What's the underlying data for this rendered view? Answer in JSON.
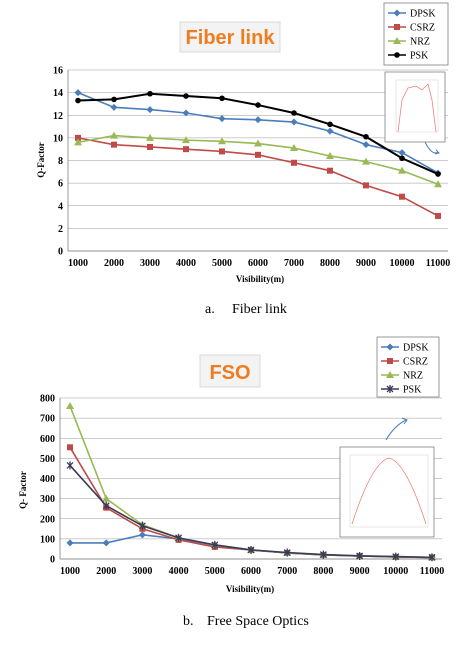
{
  "chart_data": [
    {
      "type": "line",
      "title": "Fiber link",
      "xlabel": "Visibility(m)",
      "ylabel": "Q-Factor",
      "ylim": [
        0,
        16
      ],
      "yticks": [
        0,
        2,
        4,
        6,
        8,
        10,
        12,
        14,
        16
      ],
      "categories": [
        "1000",
        "2000",
        "3000",
        "4000",
        "5000",
        "6000",
        "7000",
        "8000",
        "9000",
        "10000",
        "11000"
      ],
      "series": [
        {
          "name": "DPSK",
          "color": "#4a7ebb",
          "marker": "diamond",
          "values": [
            14.0,
            12.7,
            12.5,
            12.2,
            11.7,
            11.6,
            11.4,
            10.6,
            9.4,
            8.7,
            6.9
          ]
        },
        {
          "name": "CSRZ",
          "color": "#be4b48",
          "marker": "square",
          "values": [
            10.0,
            9.4,
            9.2,
            9.0,
            8.8,
            8.5,
            7.8,
            7.1,
            5.8,
            4.8,
            3.1
          ]
        },
        {
          "name": "NRZ",
          "color": "#98b954",
          "marker": "triangle",
          "values": [
            9.6,
            10.2,
            10.0,
            9.8,
            9.7,
            9.5,
            9.1,
            8.4,
            7.9,
            7.1,
            5.9
          ]
        },
        {
          "name": "PSK",
          "color": "#000000",
          "marker": "circle",
          "values": [
            13.3,
            13.4,
            13.9,
            13.7,
            13.5,
            12.9,
            12.2,
            11.2,
            10.1,
            8.2,
            6.8
          ]
        }
      ],
      "grid": true,
      "legend": "top-right",
      "caption_letter": "a.",
      "caption_text": "Fiber link"
    },
    {
      "type": "line",
      "title": "FSO",
      "xlabel": "Visibility(m)",
      "ylabel": "Q- Factor",
      "ylim": [
        0,
        800
      ],
      "yticks": [
        0,
        100,
        200,
        300,
        400,
        500,
        600,
        700,
        800
      ],
      "categories": [
        "1000",
        "2000",
        "3000",
        "4000",
        "5000",
        "6000",
        "7000",
        "8000",
        "9000",
        "10000",
        "11000"
      ],
      "series": [
        {
          "name": "DPSK",
          "color": "#4a7ebb",
          "marker": "diamond",
          "values": [
            80,
            80,
            120,
            100,
            70,
            45,
            30,
            20,
            15,
            10,
            8
          ]
        },
        {
          "name": "CSRZ",
          "color": "#be4b48",
          "marker": "square",
          "values": [
            555,
            255,
            150,
            95,
            60,
            45,
            30,
            20,
            15,
            10,
            8
          ]
        },
        {
          "name": "NRZ",
          "color": "#98b954",
          "marker": "triangle",
          "values": [
            760,
            300,
            170,
            105,
            70,
            45,
            30,
            22,
            15,
            12,
            8
          ]
        },
        {
          "name": "PSK",
          "color": "#3a3a5a",
          "marker": "cross",
          "values": [
            465,
            265,
            165,
            105,
            70,
            45,
            32,
            22,
            15,
            12,
            8
          ]
        }
      ],
      "grid": true,
      "legend": "top-right",
      "caption_letter": "b.",
      "caption_text": "Free Space Optics"
    }
  ]
}
